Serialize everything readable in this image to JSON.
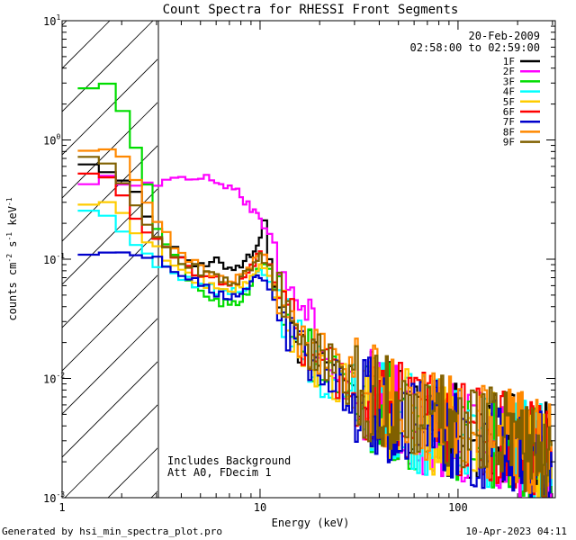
{
  "chart_data": {
    "type": "line",
    "title": "Count Spectra for RHESSI Front Segments",
    "xlabel": "Energy (keV)",
    "ylabel_parts": [
      "counts cm",
      "-2",
      " s",
      "-1",
      " keV",
      "-1"
    ],
    "xscale": "log",
    "yscale": "log",
    "xlim": [
      1,
      310
    ],
    "ylim": [
      0.001,
      10
    ],
    "x_ticks": [
      {
        "value": 1,
        "label": "1"
      },
      {
        "value": 10,
        "label": "10"
      },
      {
        "value": 100,
        "label": "100"
      }
    ],
    "y_ticks": [
      {
        "value": 0.001,
        "base": "10",
        "exp": "-3"
      },
      {
        "value": 0.01,
        "base": "10",
        "exp": "-2"
      },
      {
        "value": 0.1,
        "base": "10",
        "exp": "-1"
      },
      {
        "value": 1,
        "base": "10",
        "exp": "0"
      },
      {
        "value": 10,
        "base": "10",
        "exp": "1"
      }
    ],
    "hatched_region_max_keV": 3,
    "date": "20-Feb-2009",
    "time_range": "02:58:00 to 02:59:00",
    "annotations": [
      "Includes Background",
      "Att A0, FDecim 1"
    ],
    "footer_left": "Generated by hsi_min_spectra_plot.pro",
    "footer_right": "10-Apr-2023 04:11",
    "series": [
      {
        "name": "1F",
        "color": "#000000",
        "points": [
          [
            1.2,
            0.78
          ],
          [
            1.5,
            0.62
          ],
          [
            2.0,
            0.48
          ],
          [
            2.5,
            0.3
          ],
          [
            3.0,
            0.16
          ],
          [
            4.0,
            0.11
          ],
          [
            5.0,
            0.085
          ],
          [
            6.0,
            0.095
          ],
          [
            7.0,
            0.085
          ],
          [
            8.0,
            0.09
          ],
          [
            9.0,
            0.11
          ],
          [
            10.0,
            0.15
          ],
          [
            10.5,
            0.2
          ],
          [
            11.0,
            0.12
          ],
          [
            12.0,
            0.055
          ],
          [
            14.0,
            0.03
          ],
          [
            17.0,
            0.018
          ],
          [
            20.0,
            0.013
          ],
          [
            25.0,
            0.01
          ],
          [
            30.0,
            0.0085
          ],
          [
            40.0,
            0.0062
          ],
          [
            50.0,
            0.0052
          ],
          [
            60.0,
            0.0048
          ],
          [
            80.0,
            0.0042
          ],
          [
            100.0,
            0.0038
          ],
          [
            150.0,
            0.0033
          ],
          [
            200.0,
            0.003
          ],
          [
            300.0,
            0.0024
          ]
        ]
      },
      {
        "name": "2F",
        "color": "#ff00ff",
        "points": [
          [
            1.2,
            0.46
          ],
          [
            2.0,
            0.46
          ],
          [
            3.0,
            0.44
          ],
          [
            4.0,
            0.48
          ],
          [
            5.0,
            0.5
          ],
          [
            6.0,
            0.45
          ],
          [
            7.0,
            0.42
          ],
          [
            8.0,
            0.35
          ],
          [
            9.0,
            0.26
          ],
          [
            10.0,
            0.21
          ],
          [
            11.0,
            0.17
          ],
          [
            12.0,
            0.12
          ],
          [
            14.0,
            0.07
          ],
          [
            17.0,
            0.035
          ],
          [
            20.0,
            0.018
          ],
          [
            25.0,
            0.011
          ],
          [
            30.0,
            0.0085
          ],
          [
            40.0,
            0.0062
          ],
          [
            50.0,
            0.005
          ],
          [
            60.0,
            0.0042
          ],
          [
            80.0,
            0.0038
          ],
          [
            100.0,
            0.0033
          ],
          [
            150.0,
            0.0027
          ],
          [
            200.0,
            0.0023
          ],
          [
            300.0,
            0.0018
          ]
        ]
      },
      {
        "name": "3F",
        "color": "#00dd00",
        "points": [
          [
            1.2,
            2.9
          ],
          [
            1.8,
            2.9
          ],
          [
            2.0,
            1.8
          ],
          [
            2.5,
            0.75
          ],
          [
            3.0,
            0.2
          ],
          [
            4.0,
            0.085
          ],
          [
            5.0,
            0.055
          ],
          [
            6.0,
            0.045
          ],
          [
            7.0,
            0.042
          ],
          [
            8.0,
            0.045
          ],
          [
            9.0,
            0.06
          ],
          [
            10.0,
            0.09
          ],
          [
            11.0,
            0.085
          ],
          [
            12.0,
            0.05
          ],
          [
            14.0,
            0.03
          ],
          [
            17.0,
            0.017
          ],
          [
            20.0,
            0.013
          ],
          [
            25.0,
            0.0095
          ],
          [
            30.0,
            0.0078
          ],
          [
            40.0,
            0.0058
          ],
          [
            50.0,
            0.0048
          ],
          [
            60.0,
            0.0043
          ],
          [
            80.0,
            0.0038
          ],
          [
            100.0,
            0.0034
          ],
          [
            150.0,
            0.0029
          ],
          [
            200.0,
            0.0026
          ],
          [
            300.0,
            0.0022
          ]
        ]
      },
      {
        "name": "4F",
        "color": "#00ffff",
        "points": [
          [
            1.2,
            0.27
          ],
          [
            1.6,
            0.27
          ],
          [
            2.0,
            0.18
          ],
          [
            2.5,
            0.13
          ],
          [
            3.0,
            0.095
          ],
          [
            4.0,
            0.07
          ],
          [
            5.0,
            0.06
          ],
          [
            6.0,
            0.055
          ],
          [
            7.0,
            0.052
          ],
          [
            8.0,
            0.054
          ],
          [
            9.0,
            0.065
          ],
          [
            10.0,
            0.085
          ],
          [
            11.0,
            0.075
          ],
          [
            12.0,
            0.045
          ],
          [
            14.0,
            0.028
          ],
          [
            17.0,
            0.017
          ],
          [
            20.0,
            0.012
          ],
          [
            25.0,
            0.0092
          ],
          [
            30.0,
            0.0078
          ],
          [
            40.0,
            0.0058
          ],
          [
            50.0,
            0.0048
          ],
          [
            60.0,
            0.0043
          ],
          [
            80.0,
            0.0038
          ],
          [
            100.0,
            0.0034
          ],
          [
            150.0,
            0.0029
          ],
          [
            200.0,
            0.0026
          ],
          [
            300.0,
            0.0022
          ]
        ]
      },
      {
        "name": "5F",
        "color": "#ffcc00",
        "points": [
          [
            1.2,
            0.3
          ],
          [
            1.6,
            0.3
          ],
          [
            2.0,
            0.23
          ],
          [
            2.5,
            0.16
          ],
          [
            3.0,
            0.12
          ],
          [
            4.0,
            0.08
          ],
          [
            5.0,
            0.065
          ],
          [
            6.0,
            0.058
          ],
          [
            7.0,
            0.055
          ],
          [
            8.0,
            0.058
          ],
          [
            9.0,
            0.07
          ],
          [
            10.0,
            0.09
          ],
          [
            11.0,
            0.08
          ],
          [
            12.0,
            0.047
          ],
          [
            14.0,
            0.029
          ],
          [
            17.0,
            0.017
          ],
          [
            20.0,
            0.0125
          ],
          [
            25.0,
            0.0095
          ],
          [
            30.0,
            0.008
          ],
          [
            40.0,
            0.006
          ],
          [
            50.0,
            0.005
          ],
          [
            60.0,
            0.0044
          ],
          [
            80.0,
            0.0039
          ],
          [
            100.0,
            0.0035
          ],
          [
            150.0,
            0.003
          ],
          [
            200.0,
            0.0027
          ],
          [
            300.0,
            0.0022
          ]
        ]
      },
      {
        "name": "6F",
        "color": "#ff0000",
        "points": [
          [
            1.2,
            0.54
          ],
          [
            1.6,
            0.54
          ],
          [
            2.0,
            0.35
          ],
          [
            2.5,
            0.2
          ],
          [
            3.0,
            0.14
          ],
          [
            4.0,
            0.095
          ],
          [
            5.0,
            0.075
          ],
          [
            6.0,
            0.068
          ],
          [
            7.0,
            0.062
          ],
          [
            8.0,
            0.068
          ],
          [
            9.0,
            0.085
          ],
          [
            10.0,
            0.11
          ],
          [
            11.0,
            0.095
          ],
          [
            12.0,
            0.055
          ],
          [
            14.0,
            0.033
          ],
          [
            17.0,
            0.02
          ],
          [
            20.0,
            0.015
          ],
          [
            25.0,
            0.011
          ],
          [
            30.0,
            0.009
          ],
          [
            40.0,
            0.0068
          ],
          [
            50.0,
            0.0055
          ],
          [
            60.0,
            0.0049
          ],
          [
            80.0,
            0.0043
          ],
          [
            100.0,
            0.0038
          ],
          [
            150.0,
            0.0033
          ],
          [
            200.0,
            0.0029
          ],
          [
            300.0,
            0.0024
          ]
        ]
      },
      {
        "name": "7F",
        "color": "#0000cc",
        "points": [
          [
            1.2,
            0.105
          ],
          [
            1.6,
            0.12
          ],
          [
            2.0,
            0.12
          ],
          [
            2.5,
            0.11
          ],
          [
            3.0,
            0.1
          ],
          [
            4.0,
            0.075
          ],
          [
            5.0,
            0.06
          ],
          [
            6.0,
            0.052
          ],
          [
            7.0,
            0.048
          ],
          [
            8.0,
            0.05
          ],
          [
            9.0,
            0.06
          ],
          [
            10.0,
            0.075
          ],
          [
            11.0,
            0.065
          ],
          [
            12.0,
            0.042
          ],
          [
            14.0,
            0.026
          ],
          [
            17.0,
            0.016
          ],
          [
            20.0,
            0.012
          ],
          [
            25.0,
            0.009
          ],
          [
            30.0,
            0.0075
          ],
          [
            40.0,
            0.0056
          ],
          [
            50.0,
            0.0046
          ],
          [
            60.0,
            0.0042
          ],
          [
            80.0,
            0.0037
          ],
          [
            100.0,
            0.0033
          ],
          [
            150.0,
            0.0029
          ],
          [
            200.0,
            0.0026
          ],
          [
            300.0,
            0.0021
          ]
        ]
      },
      {
        "name": "8F",
        "color": "#ff8800",
        "points": [
          [
            1.2,
            0.78
          ],
          [
            1.5,
            0.85
          ],
          [
            2.0,
            0.7
          ],
          [
            2.5,
            0.42
          ],
          [
            3.0,
            0.2
          ],
          [
            4.0,
            0.11
          ],
          [
            5.0,
            0.085
          ],
          [
            6.0,
            0.075
          ],
          [
            7.0,
            0.068
          ],
          [
            8.0,
            0.072
          ],
          [
            9.0,
            0.09
          ],
          [
            10.0,
            0.115
          ],
          [
            11.0,
            0.1
          ],
          [
            12.0,
            0.058
          ],
          [
            14.0,
            0.034
          ],
          [
            17.0,
            0.02
          ],
          [
            20.0,
            0.015
          ],
          [
            25.0,
            0.011
          ],
          [
            30.0,
            0.009
          ],
          [
            40.0,
            0.0068
          ],
          [
            50.0,
            0.0056
          ],
          [
            60.0,
            0.005
          ],
          [
            80.0,
            0.0044
          ],
          [
            100.0,
            0.0039
          ],
          [
            150.0,
            0.0034
          ],
          [
            200.0,
            0.003
          ],
          [
            300.0,
            0.0025
          ]
        ]
      },
      {
        "name": "9F",
        "color": "#806000",
        "points": [
          [
            1.2,
            0.72
          ],
          [
            1.6,
            0.72
          ],
          [
            2.0,
            0.45
          ],
          [
            2.5,
            0.25
          ],
          [
            3.0,
            0.15
          ],
          [
            4.0,
            0.1
          ],
          [
            5.0,
            0.08
          ],
          [
            6.0,
            0.07
          ],
          [
            7.0,
            0.064
          ],
          [
            8.0,
            0.068
          ],
          [
            9.0,
            0.085
          ],
          [
            10.0,
            0.11
          ],
          [
            11.0,
            0.095
          ],
          [
            12.0,
            0.055
          ],
          [
            14.0,
            0.032
          ],
          [
            17.0,
            0.019
          ],
          [
            20.0,
            0.014
          ],
          [
            25.0,
            0.0105
          ],
          [
            30.0,
            0.0088
          ],
          [
            40.0,
            0.0066
          ],
          [
            50.0,
            0.0054
          ],
          [
            60.0,
            0.0048
          ],
          [
            80.0,
            0.0042
          ],
          [
            100.0,
            0.0038
          ],
          [
            150.0,
            0.0033
          ],
          [
            200.0,
            0.0029
          ],
          [
            300.0,
            0.0024
          ]
        ]
      }
    ]
  }
}
